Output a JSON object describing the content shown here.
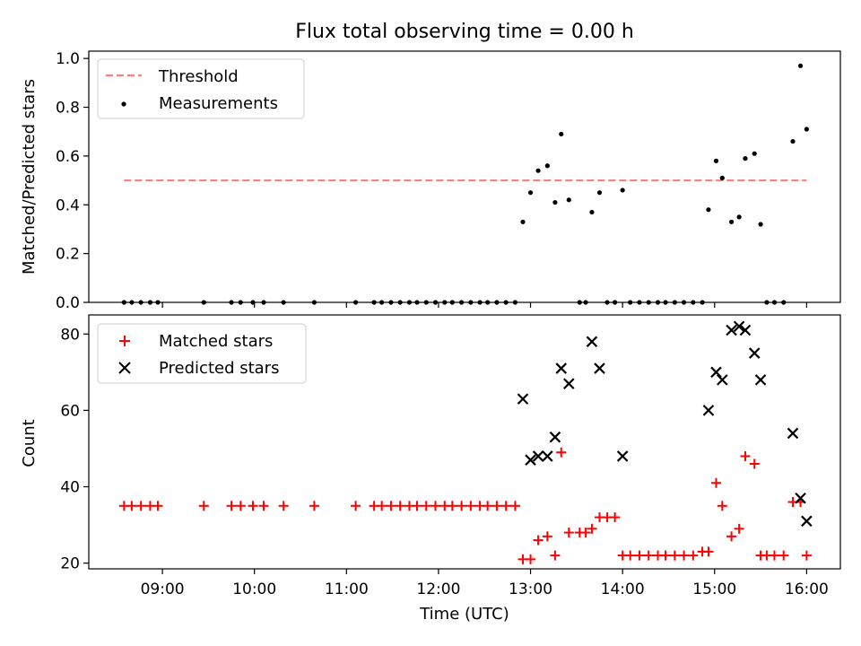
{
  "chart_data": [
    {
      "type": "scatter",
      "title": "Flux total observing time = 0.00 h",
      "xlabel": "",
      "ylabel": "Matched/Predicted stars",
      "ylim": [
        0,
        1.03
      ],
      "yticks": [
        "0.0",
        "0.2",
        "0.4",
        "0.6",
        "0.8",
        "1.0"
      ],
      "ytick_values": [
        0,
        0.2,
        0.4,
        0.6,
        0.8,
        1.0
      ],
      "xticks_shown": false,
      "legend": {
        "location": "upper left",
        "entries": [
          "Threshold",
          "Measurements"
        ]
      },
      "threshold": {
        "name": "Threshold",
        "y": 0.5,
        "x_start": "08:35",
        "x_end": "16:00",
        "color": "#ff7f7f",
        "style": "dashed"
      },
      "series": [
        {
          "name": "Measurements",
          "color": "#000000",
          "marker": "dot",
          "points": [
            [
              "08:35",
              0
            ],
            [
              "08:40",
              0
            ],
            [
              "08:46",
              0
            ],
            [
              "08:52",
              0
            ],
            [
              "08:57",
              0
            ],
            [
              "09:27",
              0
            ],
            [
              "09:45",
              0
            ],
            [
              "09:51",
              0
            ],
            [
              "09:59",
              0
            ],
            [
              "10:06",
              0
            ],
            [
              "10:19",
              0
            ],
            [
              "10:39",
              0
            ],
            [
              "11:06",
              0
            ],
            [
              "11:18",
              0
            ],
            [
              "11:23",
              0
            ],
            [
              "11:29",
              0
            ],
            [
              "11:35",
              0
            ],
            [
              "11:41",
              0
            ],
            [
              "11:46",
              0
            ],
            [
              "11:52",
              0
            ],
            [
              "11:58",
              0
            ],
            [
              "12:04",
              0
            ],
            [
              "12:09",
              0
            ],
            [
              "12:15",
              0
            ],
            [
              "12:21",
              0
            ],
            [
              "12:27",
              0
            ],
            [
              "12:32",
              0
            ],
            [
              "12:38",
              0
            ],
            [
              "12:44",
              0
            ],
            [
              "12:50",
              0
            ],
            [
              "12:55",
              0.33
            ],
            [
              "13:00",
              0.45
            ],
            [
              "13:05",
              0.54
            ],
            [
              "13:11",
              0.56
            ],
            [
              "13:16",
              0.41
            ],
            [
              "13:20",
              0.69
            ],
            [
              "13:25",
              0.42
            ],
            [
              "13:32",
              0
            ],
            [
              "13:36",
              0
            ],
            [
              "13:40",
              0.37
            ],
            [
              "13:45",
              0.45
            ],
            [
              "13:50",
              0
            ],
            [
              "13:55",
              0
            ],
            [
              "14:00",
              0.46
            ],
            [
              "14:05",
              0
            ],
            [
              "14:11",
              0
            ],
            [
              "14:17",
              0
            ],
            [
              "14:23",
              0
            ],
            [
              "14:28",
              0
            ],
            [
              "14:34",
              0
            ],
            [
              "14:40",
              0
            ],
            [
              "14:46",
              0
            ],
            [
              "14:52",
              0
            ],
            [
              "14:56",
              0.38
            ],
            [
              "15:01",
              0.58
            ],
            [
              "15:05",
              0.51
            ],
            [
              "15:11",
              0.33
            ],
            [
              "15:16",
              0.35
            ],
            [
              "15:20",
              0.59
            ],
            [
              "15:26",
              0.61
            ],
            [
              "15:30",
              0.32
            ],
            [
              "15:34",
              0
            ],
            [
              "15:39",
              0
            ],
            [
              "15:45",
              0
            ],
            [
              "15:51",
              0.66
            ],
            [
              "15:56",
              0.97
            ],
            [
              "16:00",
              0.71
            ]
          ]
        }
      ]
    },
    {
      "type": "scatter",
      "title": "",
      "xlabel": "Time (UTC)",
      "ylabel": "Count",
      "ylim": [
        18.5,
        85
      ],
      "yticks": [
        "20",
        "40",
        "60",
        "80"
      ],
      "ytick_values": [
        20,
        40,
        60,
        80
      ],
      "xlim": [
        "08:12",
        "16:22"
      ],
      "xticks": [
        "09:00",
        "10:00",
        "11:00",
        "12:00",
        "13:00",
        "14:00",
        "15:00",
        "16:00"
      ],
      "legend": {
        "location": "upper left",
        "entries": [
          "Matched stars",
          "Predicted stars"
        ]
      },
      "series": [
        {
          "name": "Matched stars",
          "color": "#ff0000",
          "marker": "plus",
          "points": [
            [
              "08:35",
              35
            ],
            [
              "08:40",
              35
            ],
            [
              "08:46",
              35
            ],
            [
              "08:52",
              35
            ],
            [
              "08:57",
              35
            ],
            [
              "09:27",
              35
            ],
            [
              "09:45",
              35
            ],
            [
              "09:51",
              35
            ],
            [
              "09:59",
              35
            ],
            [
              "10:06",
              35
            ],
            [
              "10:19",
              35
            ],
            [
              "10:39",
              35
            ],
            [
              "11:06",
              35
            ],
            [
              "11:18",
              35
            ],
            [
              "11:23",
              35
            ],
            [
              "11:29",
              35
            ],
            [
              "11:35",
              35
            ],
            [
              "11:41",
              35
            ],
            [
              "11:46",
              35
            ],
            [
              "11:52",
              35
            ],
            [
              "11:58",
              35
            ],
            [
              "12:04",
              35
            ],
            [
              "12:09",
              35
            ],
            [
              "12:15",
              35
            ],
            [
              "12:21",
              35
            ],
            [
              "12:27",
              35
            ],
            [
              "12:32",
              35
            ],
            [
              "12:38",
              35
            ],
            [
              "12:44",
              35
            ],
            [
              "12:50",
              35
            ],
            [
              "12:55",
              21
            ],
            [
              "13:00",
              21
            ],
            [
              "13:05",
              26
            ],
            [
              "13:11",
              27
            ],
            [
              "13:16",
              22
            ],
            [
              "13:20",
              49
            ],
            [
              "13:25",
              28
            ],
            [
              "13:32",
              28
            ],
            [
              "13:36",
              28
            ],
            [
              "13:40",
              29
            ],
            [
              "13:45",
              32
            ],
            [
              "13:50",
              32
            ],
            [
              "13:55",
              32
            ],
            [
              "14:00",
              22
            ],
            [
              "14:05",
              22
            ],
            [
              "14:11",
              22
            ],
            [
              "14:17",
              22
            ],
            [
              "14:23",
              22
            ],
            [
              "14:28",
              22
            ],
            [
              "14:34",
              22
            ],
            [
              "14:40",
              22
            ],
            [
              "14:46",
              22
            ],
            [
              "14:52",
              23
            ],
            [
              "14:56",
              23
            ],
            [
              "15:01",
              41
            ],
            [
              "15:05",
              35
            ],
            [
              "15:11",
              27
            ],
            [
              "15:16",
              29
            ],
            [
              "15:20",
              48
            ],
            [
              "15:26",
              46
            ],
            [
              "15:30",
              22
            ],
            [
              "15:34",
              22
            ],
            [
              "15:39",
              22
            ],
            [
              "15:45",
              22
            ],
            [
              "15:51",
              36
            ],
            [
              "15:56",
              36
            ],
            [
              "16:00",
              22
            ]
          ]
        },
        {
          "name": "Predicted stars",
          "color": "#000000",
          "marker": "x",
          "points": [
            [
              "12:55",
              63
            ],
            [
              "13:00",
              47
            ],
            [
              "13:05",
              48
            ],
            [
              "13:11",
              48
            ],
            [
              "13:16",
              53
            ],
            [
              "13:20",
              71
            ],
            [
              "13:25",
              67
            ],
            [
              "13:40",
              78
            ],
            [
              "13:45",
              71
            ],
            [
              "14:00",
              48
            ],
            [
              "14:56",
              60
            ],
            [
              "15:01",
              70
            ],
            [
              "15:05",
              68
            ],
            [
              "15:11",
              81
            ],
            [
              "15:16",
              82
            ],
            [
              "15:20",
              81
            ],
            [
              "15:26",
              75
            ],
            [
              "15:30",
              68
            ],
            [
              "15:51",
              54
            ],
            [
              "15:56",
              37
            ],
            [
              "16:00",
              31
            ]
          ]
        }
      ]
    }
  ]
}
